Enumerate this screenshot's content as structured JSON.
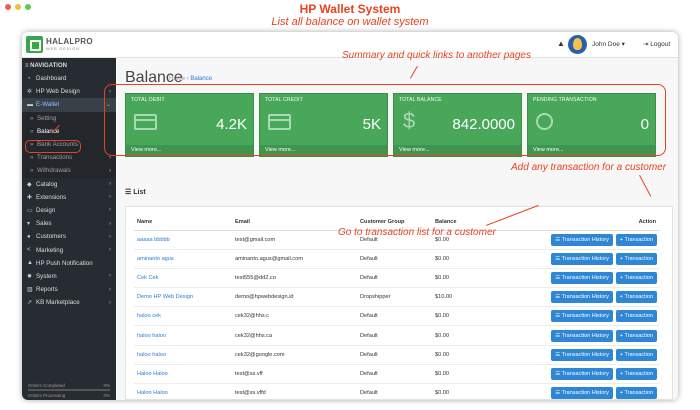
{
  "window": {
    "title": "HP Wallet System"
  },
  "annotations": {
    "top": "List all balance on wallet system",
    "summary": "Summary and quick links to another pages",
    "add": "Add any transaction for a customer",
    "goto": "Go to transaction list for a customer"
  },
  "logo": {
    "name": "HALALPRO",
    "sub": "WEB DESIGN"
  },
  "header": {
    "user": "John Doe",
    "logout": "Logout"
  },
  "sidebar": {
    "heading": "NAVIGATION",
    "items": [
      {
        "label": "Dashboard",
        "icon": "dashboard-icon"
      },
      {
        "label": "HP Web Design",
        "icon": "cogs-icon"
      },
      {
        "label": "E-Wallet",
        "icon": "wallet-icon"
      },
      {
        "label": "Setting"
      },
      {
        "label": "Balance"
      },
      {
        "label": "Bank Accounts"
      },
      {
        "label": "Transactions"
      },
      {
        "label": "Withdrawals"
      },
      {
        "label": "Catalog",
        "icon": "tag-icon"
      },
      {
        "label": "Extensions",
        "icon": "puzzle-icon"
      },
      {
        "label": "Design",
        "icon": "monitor-icon"
      },
      {
        "label": "Sales",
        "icon": "cart-icon"
      },
      {
        "label": "Customers",
        "icon": "user-icon"
      },
      {
        "label": "Marketing",
        "icon": "share-icon"
      },
      {
        "label": "HP Push Notification",
        "icon": "bell-icon"
      },
      {
        "label": "System",
        "icon": "gear-icon"
      },
      {
        "label": "Reports",
        "icon": "chart-icon"
      },
      {
        "label": "KB Marketplace",
        "icon": "trend-icon"
      }
    ],
    "footer": {
      "orders_completed": "Orders Completed",
      "orders_completed_pct": "0%",
      "orders_processing": "Orders Processing",
      "orders_processing_pct": "0%"
    }
  },
  "page": {
    "title": "Balance",
    "breadcrumb_home": "Home",
    "breadcrumb_current": "Balance"
  },
  "cards": [
    {
      "title": "TOTAL DEBIT",
      "value": "4.2K",
      "link": "View more..."
    },
    {
      "title": "TOTAL CREDIT",
      "value": "5K",
      "link": "View more..."
    },
    {
      "title": "TOTAL BALANCE",
      "value": "842.0000",
      "link": "View more..."
    },
    {
      "title": "PENDING TRANSACTION",
      "value": "0",
      "link": "View more..."
    }
  ],
  "list": {
    "heading": "List",
    "columns": [
      "Name",
      "Email",
      "Customer Group",
      "Balance",
      "Action"
    ],
    "history_label": "Transaction History",
    "transaction_label": "+ Transaction",
    "rows": [
      [
        "aaaaa bbbbb",
        "test@gmail.com",
        "Default",
        "$0.00"
      ],
      [
        "aminanto agus",
        "aminanto.agus@gmail.com",
        "Default",
        "$0.00"
      ],
      [
        "Cek Cek",
        "test555@dd2.co",
        "Default",
        "$0.00"
      ],
      [
        "Demo HP Web Design",
        "demo@hpwebdesign.id",
        "Dropshipper",
        "$10.00"
      ],
      [
        "haloo cek",
        "cek32@hhs.c",
        "Default",
        "$0.00"
      ],
      [
        "haloo haloo",
        "cek32@hhs.ca",
        "Default",
        "$0.00"
      ],
      [
        "haloo haloo",
        "cek32@google.com",
        "Default",
        "$0.00"
      ],
      [
        "Haloo Haloo",
        "test@ss.vff",
        "Default",
        "$0.00"
      ],
      [
        "Haloo Haloo",
        "test@ss.vffd",
        "Default",
        "$0.00"
      ]
    ]
  }
}
